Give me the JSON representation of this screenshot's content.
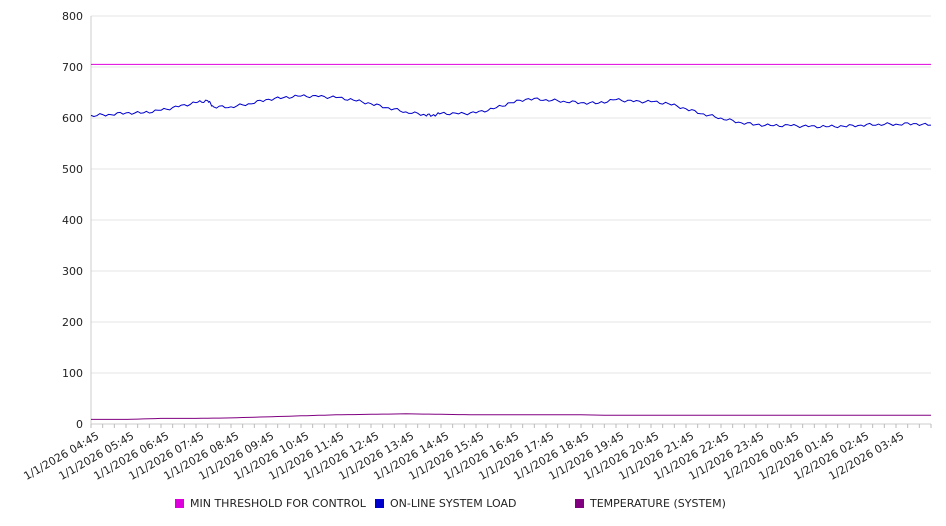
{
  "chart_data": {
    "type": "line",
    "ylim": [
      0,
      800
    ],
    "y_ticks": [
      0,
      100,
      200,
      300,
      400,
      500,
      600,
      700,
      800
    ],
    "x_tick_labels": [
      "1/1/2026 04:45",
      "1/1/2026 05:45",
      "1/1/2026 06:45",
      "1/1/2026 07:45",
      "1/1/2026 08:45",
      "1/1/2026 09:45",
      "1/1/2026 10:45",
      "1/1/2026 11:45",
      "1/1/2026 12:45",
      "1/1/2026 13:45",
      "1/1/2026 14:45",
      "1/1/2026 15:45",
      "1/1/2026 16:45",
      "1/1/2026 17:45",
      "1/1/2026 18:45",
      "1/1/2026 19:45",
      "1/1/2026 20:45",
      "1/1/2026 21:45",
      "1/1/2026 22:45",
      "1/1/2026 23:45",
      "1/2/2026 00:45",
      "1/2/2026 01:45",
      "1/2/2026 02:45",
      "1/2/2026 03:45"
    ],
    "grid": "horizontal",
    "legend_position": "bottom",
    "series": [
      {
        "name": "MIN THRESHOLD FOR CONTROL",
        "color": "#dd00dd",
        "x": [
          "1/1/2026 04:30",
          "1/2/2026 04:30"
        ],
        "y": [
          705,
          705
        ]
      },
      {
        "name": "ON-LINE SYSTEM LOAD",
        "color": "#0000cc",
        "x": [
          "1/1/2026 04:30",
          "1/1/2026 05:00",
          "1/1/2026 05:30",
          "1/1/2026 06:00",
          "1/1/2026 06:30",
          "1/1/2026 07:00",
          "1/1/2026 07:30",
          "1/1/2026 07:50",
          "1/1/2026 08:00",
          "1/1/2026 08:30",
          "1/1/2026 09:00",
          "1/1/2026 09:30",
          "1/1/2026 10:00",
          "1/1/2026 10:30",
          "1/1/2026 11:00",
          "1/1/2026 11:30",
          "1/1/2026 12:00",
          "1/1/2026 12:30",
          "1/1/2026 13:00",
          "1/1/2026 13:30",
          "1/1/2026 14:00",
          "1/1/2026 14:15",
          "1/1/2026 14:30",
          "1/1/2026 15:00",
          "1/1/2026 15:30",
          "1/1/2026 16:00",
          "1/1/2026 16:30",
          "1/1/2026 17:00",
          "1/1/2026 17:30",
          "1/1/2026 18:00",
          "1/1/2026 18:30",
          "1/1/2026 19:00",
          "1/1/2026 19:30",
          "1/1/2026 20:00",
          "1/1/2026 20:30",
          "1/1/2026 21:00",
          "1/1/2026 21:30",
          "1/1/2026 22:00",
          "1/1/2026 22:30",
          "1/1/2026 23:00",
          "1/1/2026 23:30",
          "1/2/2026 00:00",
          "1/2/2026 00:30",
          "1/2/2026 01:00",
          "1/2/2026 01:30",
          "1/2/2026 02:00",
          "1/2/2026 02:30",
          "1/2/2026 03:00",
          "1/2/2026 03:30",
          "1/2/2026 04:00",
          "1/2/2026 04:30"
        ],
        "y": [
          605,
          607,
          610,
          610,
          615,
          622,
          630,
          634,
          622,
          622,
          628,
          636,
          640,
          643,
          642,
          640,
          635,
          628,
          620,
          612,
          607,
          605,
          609,
          608,
          610,
          618,
          630,
          638,
          636,
          633,
          630,
          629,
          636,
          632,
          632,
          628,
          618,
          608,
          600,
          592,
          587,
          585,
          585,
          583,
          583,
          584,
          586,
          588,
          588,
          589,
          586
        ]
      },
      {
        "name": "TEMPERATURE (SYSTEM)",
        "color": "#800080",
        "x": [
          "1/1/2026 04:30",
          "1/1/2026 05:30",
          "1/1/2026 06:30",
          "1/1/2026 07:30",
          "1/1/2026 08:30",
          "1/1/2026 09:30",
          "1/1/2026 10:30",
          "1/1/2026 11:30",
          "1/1/2026 12:30",
          "1/1/2026 13:30",
          "1/1/2026 14:30",
          "1/1/2026 15:30",
          "1/1/2026 16:30",
          "1/1/2026 17:30",
          "1/1/2026 18:30",
          "1/1/2026 19:30",
          "1/1/2026 20:30",
          "1/1/2026 21:30",
          "1/1/2026 22:30",
          "1/1/2026 23:30",
          "1/2/2026 00:30",
          "1/2/2026 01:30",
          "1/2/2026 02:30",
          "1/2/2026 03:30",
          "1/2/2026 04:30"
        ],
        "y": [
          9,
          9,
          11,
          11,
          12,
          14,
          16,
          18,
          19,
          20,
          19,
          18,
          18,
          18,
          18,
          17,
          17,
          17,
          17,
          17,
          17,
          17,
          17,
          17,
          17
        ]
      }
    ]
  }
}
